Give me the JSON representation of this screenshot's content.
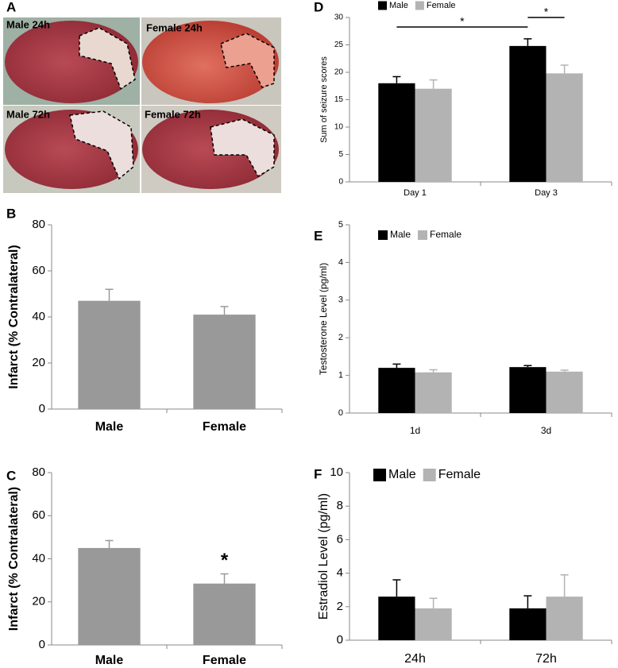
{
  "photo_panel": {
    "label": "A",
    "images": [
      {
        "label": "Male 24h"
      },
      {
        "label": "Female 24h"
      },
      {
        "label": "Male 72h"
      },
      {
        "label": "Female 72h"
      }
    ]
  },
  "chart_data": [
    {
      "type": "bar",
      "panel_label": "B",
      "y_label": "Infarct (% Contralateral)",
      "categories": [
        "Male",
        "Female"
      ],
      "values": [
        47,
        41
      ],
      "errors": [
        5,
        3.5
      ],
      "color": "#999999",
      "ylim": [
        0,
        80
      ],
      "yticks": [
        0,
        20,
        40,
        60,
        80
      ]
    },
    {
      "type": "bar",
      "panel_label": "C",
      "y_label": "Infarct (% Contralateral)",
      "categories": [
        "Male",
        "Female"
      ],
      "values": [
        45,
        28.5
      ],
      "errors": [
        3.5,
        4.5
      ],
      "color": "#999999",
      "ylim": [
        0,
        80
      ],
      "yticks": [
        0,
        20,
        40,
        60,
        80
      ],
      "annotations": [
        "*"
      ]
    },
    {
      "type": "bar",
      "panel_label": "D",
      "y_label": "Sum of seizure scores",
      "categories": [
        "Day 1",
        "Day 3"
      ],
      "series": [
        {
          "name": "Male",
          "color": "#000000",
          "values": [
            18,
            24.8
          ],
          "errors": [
            1.2,
            1.3
          ]
        },
        {
          "name": "Female",
          "color": "#b3b3b3",
          "values": [
            17,
            19.8
          ],
          "errors": [
            1.6,
            1.5
          ]
        }
      ],
      "ylim": [
        0,
        30
      ],
      "yticks": [
        0,
        5,
        10,
        15,
        20,
        25,
        30
      ],
      "legend": "top",
      "annotations": [
        "*",
        "*"
      ]
    },
    {
      "type": "bar",
      "panel_label": "E",
      "y_label": "Testosterone Level (pg/ml)",
      "categories": [
        "1d",
        "3d"
      ],
      "series": [
        {
          "name": "Male",
          "color": "#000000",
          "values": [
            1.2,
            1.22
          ],
          "errors": [
            0.1,
            0.04
          ]
        },
        {
          "name": "Female",
          "color": "#b3b3b3",
          "values": [
            1.08,
            1.1
          ],
          "errors": [
            0.07,
            0.04
          ]
        }
      ],
      "ylim": [
        0,
        5
      ],
      "yticks": [
        0,
        1,
        2,
        3,
        4,
        5
      ],
      "legend": "top-left"
    },
    {
      "type": "bar",
      "panel_label": "F",
      "y_label": "Estradiol Level (pg/ml)",
      "categories": [
        "24h",
        "72h"
      ],
      "series": [
        {
          "name": "Male",
          "color": "#000000",
          "values": [
            2.6,
            1.9
          ],
          "errors": [
            1,
            0.75
          ]
        },
        {
          "name": "Female",
          "color": "#b3b3b3",
          "values": [
            1.9,
            2.6
          ],
          "errors": [
            0.6,
            1.3
          ]
        }
      ],
      "ylim": [
        0,
        10
      ],
      "yticks": [
        0,
        2,
        4,
        6,
        8,
        10
      ],
      "legend": "top-left"
    }
  ]
}
